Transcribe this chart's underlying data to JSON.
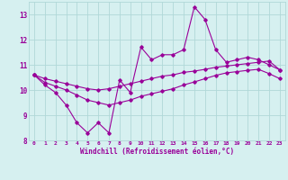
{
  "xlabel": "Windchill (Refroidissement éolien,°C)",
  "background_color": "#d6f0f0",
  "line_color": "#990099",
  "x_data": [
    0,
    1,
    2,
    3,
    4,
    5,
    6,
    7,
    8,
    9,
    10,
    11,
    12,
    13,
    14,
    15,
    16,
    17,
    18,
    19,
    20,
    21,
    22,
    23
  ],
  "y_main": [
    10.6,
    10.2,
    9.9,
    9.4,
    8.7,
    8.3,
    8.7,
    8.3,
    10.4,
    9.9,
    11.7,
    11.2,
    11.4,
    11.4,
    11.6,
    13.3,
    12.8,
    11.6,
    11.1,
    11.2,
    11.3,
    11.2,
    11.0,
    10.8
  ],
  "y_upper": [
    10.6,
    10.45,
    10.35,
    10.25,
    10.15,
    10.05,
    10.0,
    10.05,
    10.15,
    10.25,
    10.35,
    10.45,
    10.55,
    10.6,
    10.7,
    10.75,
    10.82,
    10.9,
    10.95,
    11.0,
    11.05,
    11.1,
    11.15,
    10.8
  ],
  "y_lower": [
    10.6,
    10.3,
    10.15,
    10.0,
    9.8,
    9.6,
    9.5,
    9.4,
    9.5,
    9.6,
    9.75,
    9.85,
    9.95,
    10.05,
    10.2,
    10.32,
    10.45,
    10.58,
    10.68,
    10.73,
    10.78,
    10.82,
    10.65,
    10.45
  ],
  "ylim": [
    8.0,
    13.5
  ],
  "yticks": [
    8,
    9,
    10,
    11,
    12,
    13
  ],
  "xticks": [
    0,
    1,
    2,
    3,
    4,
    5,
    6,
    7,
    8,
    9,
    10,
    11,
    12,
    13,
    14,
    15,
    16,
    17,
    18,
    19,
    20,
    21,
    22,
    23
  ],
  "grid_color": "#b0d8d8",
  "marker": "D",
  "markersize": 1.8,
  "linewidth": 0.8
}
